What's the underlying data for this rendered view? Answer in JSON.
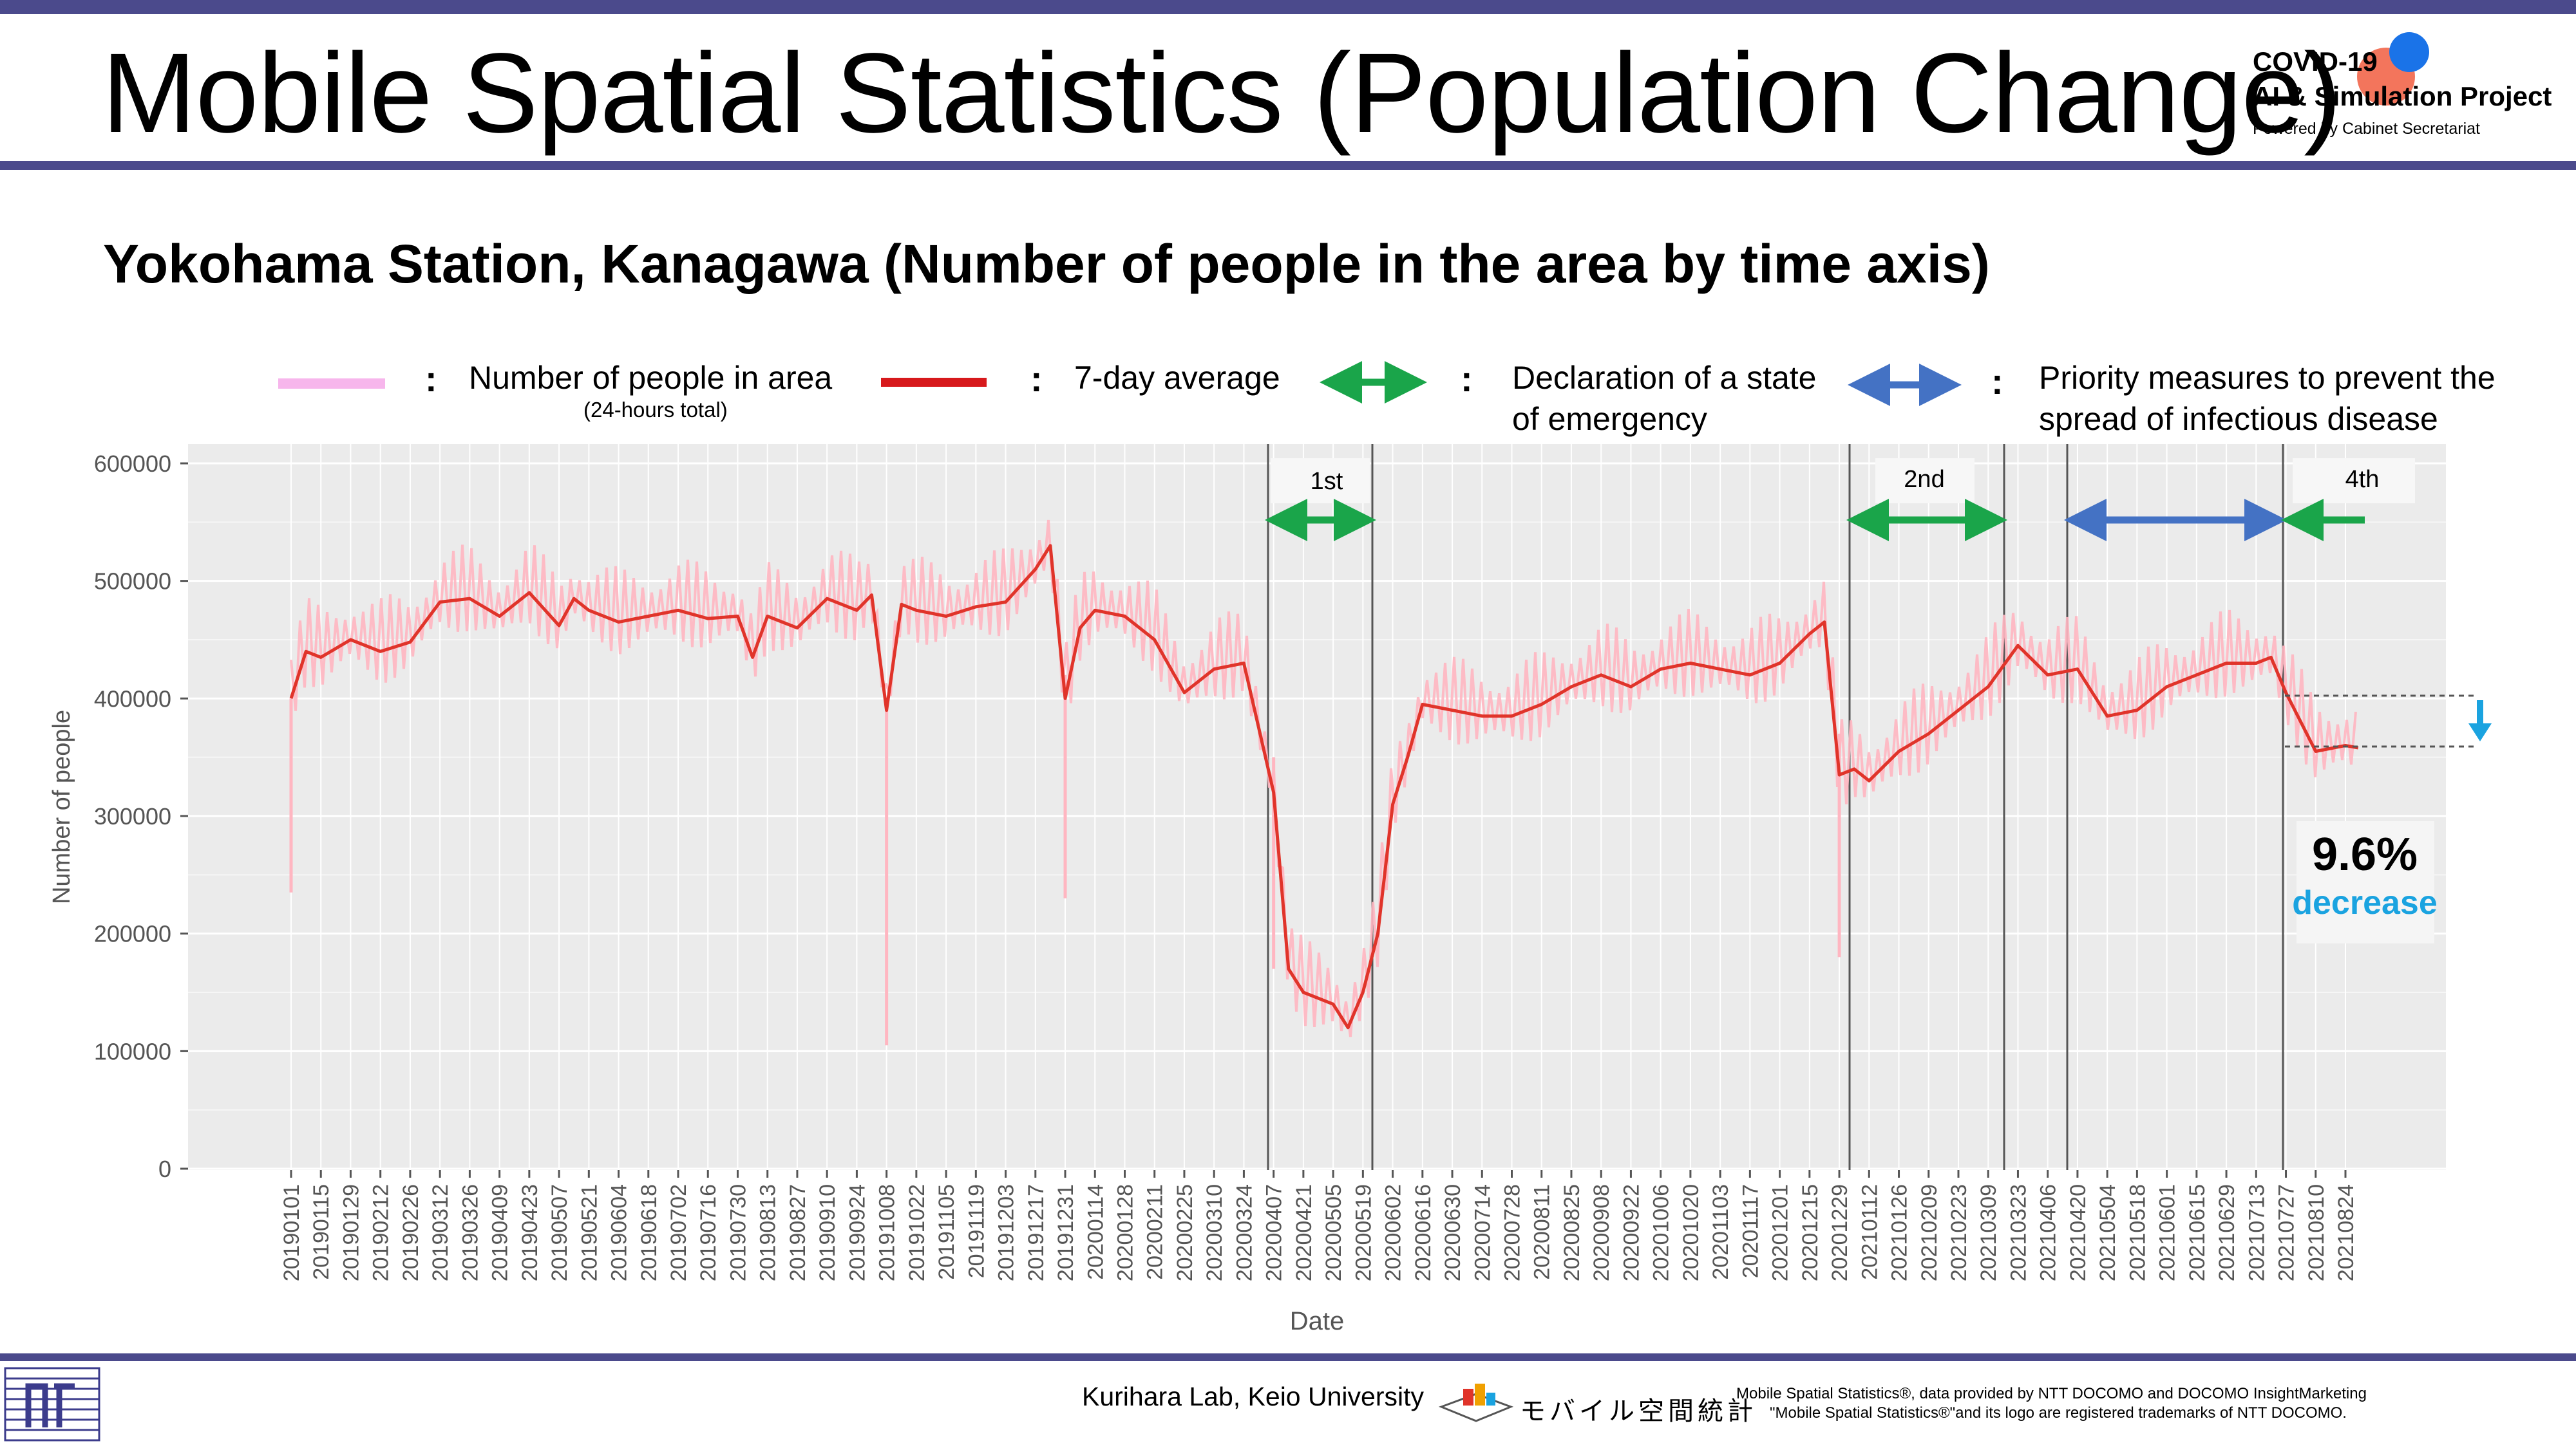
{
  "header": {
    "title": "Mobile Spatial Statistics (Population Change)",
    "brand_line1": "COVID-19",
    "brand_line2": "AI & Simulation Project",
    "brand_line3": "Powered by Cabinet Secretariat"
  },
  "subtitle": "Yokohama Station, Kanagawa (Number of people in the area by time axis)",
  "legend": {
    "daily_label": "Number of people in area",
    "daily_sublabel": "(24-hours total)",
    "avg_label": "7-day average",
    "emergency_label_1": "Declaration of a state",
    "emergency_label_2": "of emergency",
    "priority_label_1": "Priority measures to prevent the",
    "priority_label_2": "spread of infectious disease",
    "separator": ":"
  },
  "annotation": {
    "value": "9.6%",
    "word": "decrease"
  },
  "footer": {
    "lab": "Kurihara Lab, Keio University",
    "mobile_logo_text": "モバイル空間統計",
    "credit_line1": "Mobile Spatial Statistics®, data provided by NTT DOCOMO and DOCOMO InsightMarketing",
    "credit_line2": "\"Mobile Spatial Statistics®\"and its logo are registered trademarks of NTT DOCOMO."
  },
  "colors": {
    "daily": "#ffb6c1",
    "average": "#e0342a",
    "emergency_arrow": "#1aa54a",
    "priority_arrow": "#4472c4",
    "panel": "#ebebeb",
    "decrease_text": "#1aa3e0",
    "header_bar": "#4b4a8c"
  },
  "chart_data": {
    "type": "line",
    "xlabel": "Date",
    "ylabel": "Number of people",
    "ylim": [
      0,
      600000
    ],
    "yticks": [
      0,
      100000,
      200000,
      300000,
      400000,
      500000,
      600000
    ],
    "y_tick_labels": [
      "0",
      "100000",
      "200000",
      "300000",
      "400000",
      "500000",
      "600000"
    ],
    "grid": true,
    "x_tick_labels": [
      "20190101",
      "20190115",
      "20190129",
      "20190212",
      "20190226",
      "20190312",
      "20190326",
      "20190409",
      "20190423",
      "20190507",
      "20190521",
      "20190604",
      "20190618",
      "20190702",
      "20190716",
      "20190730",
      "20190813",
      "20190827",
      "20190910",
      "20190924",
      "20191008",
      "20191022",
      "20191105",
      "20191119",
      "20191203",
      "20191217",
      "20191231",
      "20200114",
      "20200128",
      "20200211",
      "20200225",
      "20200310",
      "20200324",
      "20200407",
      "20200421",
      "20200505",
      "20200519",
      "20200602",
      "20200616",
      "20200630",
      "20200714",
      "20200728",
      "20200811",
      "20200825",
      "20200908",
      "20200922",
      "20201006",
      "20201020",
      "20201103",
      "20201117",
      "20201201",
      "20201215",
      "20201229",
      "20210112",
      "20210126",
      "20210209",
      "20210223",
      "20210309",
      "20210323",
      "20210406",
      "20210420",
      "20210504",
      "20210518",
      "20210601",
      "20210615",
      "20210629",
      "20210713",
      "20210727",
      "20210810",
      "20210824"
    ],
    "series": [
      {
        "name": "7-day average",
        "x": [
          "20190101",
          "20190108",
          "20190115",
          "20190129",
          "20190212",
          "20190226",
          "20190312",
          "20190326",
          "20190409",
          "20190423",
          "20190507",
          "20190514",
          "20190521",
          "20190604",
          "20190618",
          "20190702",
          "20190716",
          "20190730",
          "20190806",
          "20190813",
          "20190827",
          "20190910",
          "20190924",
          "20191001",
          "20191008",
          "20191015",
          "20191022",
          "20191105",
          "20191119",
          "20191203",
          "20191217",
          "20191224",
          "20191231",
          "20200107",
          "20200114",
          "20200128",
          "20200211",
          "20200225",
          "20200310",
          "20200324",
          "20200407",
          "20200414",
          "20200421",
          "20200505",
          "20200512",
          "20200519",
          "20200526",
          "20200602",
          "20200609",
          "20200616",
          "20200630",
          "20200714",
          "20200728",
          "20200811",
          "20200825",
          "20200908",
          "20200922",
          "20201006",
          "20201020",
          "20201103",
          "20201117",
          "20201201",
          "20201215",
          "20201222",
          "20201229",
          "20210105",
          "20210112",
          "20210126",
          "20210209",
          "20210223",
          "20210309",
          "20210323",
          "20210406",
          "20210420",
          "20210504",
          "20210518",
          "20210601",
          "20210615",
          "20210629",
          "20210713",
          "20210720",
          "20210727",
          "20210810",
          "20210824",
          "20210830"
        ],
        "values": [
          400000,
          440000,
          435000,
          450000,
          440000,
          448000,
          482000,
          485000,
          470000,
          490000,
          462000,
          485000,
          475000,
          465000,
          470000,
          475000,
          468000,
          470000,
          435000,
          470000,
          460000,
          485000,
          475000,
          488000,
          390000,
          480000,
          475000,
          470000,
          478000,
          482000,
          510000,
          530000,
          400000,
          460000,
          475000,
          470000,
          450000,
          405000,
          425000,
          430000,
          320000,
          170000,
          150000,
          140000,
          120000,
          150000,
          200000,
          310000,
          350000,
          395000,
          390000,
          385000,
          385000,
          395000,
          410000,
          420000,
          410000,
          425000,
          430000,
          425000,
          420000,
          430000,
          455000,
          465000,
          335000,
          340000,
          330000,
          355000,
          370000,
          390000,
          410000,
          445000,
          420000,
          425000,
          385000,
          390000,
          410000,
          420000,
          430000,
          430000,
          435000,
          405000,
          355000,
          360000,
          358000
        ]
      },
      {
        "name": "Number of people in area",
        "note": "24-hours total, daily values oscillate around the 7-day average (approx. ±40000) with notable dips near 20190101 (~235000), 20191008 (~105000), 20191231 (~230000) and 20201229 (~180000)"
      }
    ],
    "periods": [
      {
        "label": "1st",
        "type": "Declaration of a state of emergency",
        "start": "20200407",
        "end": "20200525"
      },
      {
        "label": "2nd",
        "type": "Declaration of a state of emergency",
        "start": "20210108",
        "end": "20210321"
      },
      {
        "label": "",
        "type": "Priority measures to prevent the spread of infectious disease",
        "start": "20210420",
        "end": "20210801"
      },
      {
        "label": "4th",
        "type": "Declaration of a state of emergency",
        "start": "20210802",
        "end": ""
      }
    ]
  }
}
